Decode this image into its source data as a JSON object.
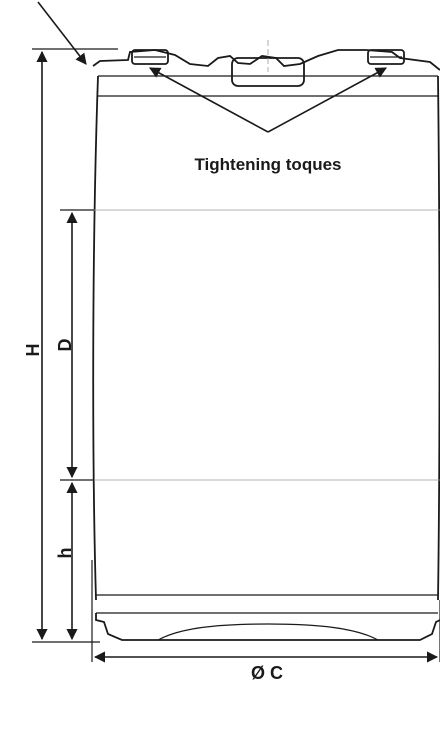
{
  "labels": {
    "callout": "Tightening toques",
    "height": "H",
    "middle_section": "D",
    "lower_section": "h",
    "diameter": "Ø C"
  }
}
